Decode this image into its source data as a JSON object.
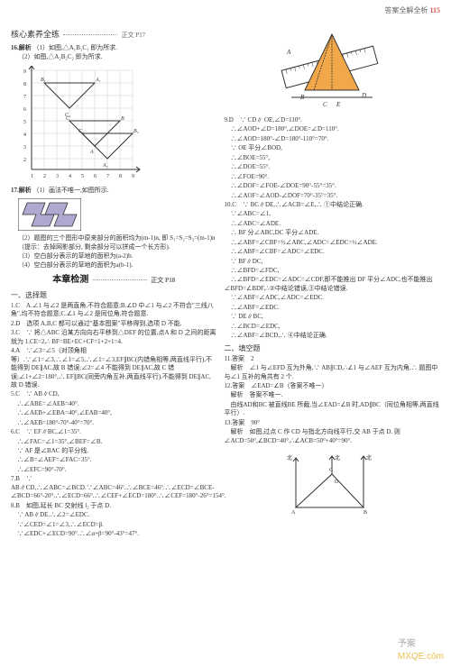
{
  "header": {
    "text": "答案全解全析",
    "page": "115"
  },
  "left": {
    "section_title": "核心素养全练",
    "ref": "正文 P17",
    "q16_label": "16.解析",
    "q16_1": "（1）如图,△A₁B₁C₁ 即为所求.",
    "q16_2": "（2）如图,△A₂B₂C₂ 即为所求.",
    "grid": {
      "xrange": [
        0,
        9
      ],
      "yrange": [
        1,
        9
      ],
      "bg": "#ffffff",
      "grid_color": "#cccccc",
      "axis_color": "#333333",
      "tri1_color": "#333333",
      "tri2_color": "#333333",
      "label_color": "#333333",
      "font_size": 7
    },
    "q17_label": "17.解析",
    "q17_1": "（1）画法不唯一,如图所示.",
    "q17_fig": {
      "bg": "#b0a8d0",
      "stroke": "#333333"
    },
    "q17_2": "（2）题图的三个图形中原来部分的面积均为(m-1)n, 即 S₁=S₂=S₃=(m-1)n（提示：去掉网影部分, 剩余部分可以拼成一个长方形).",
    "q17_3": "（3）空白部分表示的草地的面积为(a-2)b.",
    "q17_4": "（4）空白部分表示的草地的面积为a(b-1).",
    "chapter_title": "本章检测",
    "chapter_ref": "正文 P18",
    "sec1_title": "一、选择题",
    "lines1": [
      "1.C　A.∠1 与∠2 是两直角,不符合题意;B.∠D 中∠1 与∠2 不符合\"三线八角\",均不符合题意;C.∠1 与∠2 是同位角,符合题意.",
      "2.D　选项 A,B,C 都可以通过\"基本图案\"平移得到,选项 D 不能.",
      "3.C　∵ 将△ABC 沿某方向向右平移到△DEF 的位置,点A 和 D 之间的距离就为 1.CE=2,∴ BF=BE+EC+CF=1+2+1=4.",
      "4.A　∵∠3=∠5（对顶角相等）.∵∠1=∠3,∴∠1=∠5,∴∠1=∠3,EF∥BC(内错角相等,两直线平行),不能得到 DE∥AC,故 B 错误;∠2=∠4 不能得到 DE∥AC,故 C 错误;∠1+∠2=180°,∴ EF∥BC(同旁内角互补,两直线平行),不能得到 DE∥AC,故 D 错误.",
      "5.C　∵ AB∥CD,",
      "　∴∠ABE=∠AEB=40°.",
      "　∴∠AEB+∠EBA=40°,∠EAB=40°,",
      "　∴∠AEB=180°-70°-40°=70°.",
      "6.C　∵ EF∥BC,∠1=35°.",
      "　∴∠FAC=∠1=35°,∠BEF=∠B.",
      "　∵ AF 是∠BAC 的平分线,",
      "　∴∠B=∠AEF=∠FAC=35°.",
      "　∴∠EFC=90°-70°.",
      "7.B　∵ AB∥CD,∴∠ABC=∠BCD.∵∠ABC=46°.∴∠BCE=46°.∴∠ECD=∠BCE-∠BCD=66°-20°.∴∠ECD=66°.∴∠CEF+∠ECD=180°.∴∠CEF=180°-26°=154°.",
      "8.B　如图,延长 BC 交射线 l₂ 于点 D.",
      "　∵ AB∥DE.∴∠2=∠EDC.",
      "　∵∠CED=∠1=∠3,∴∠ECD=β.",
      "　∵∠EDC+∠ECD=90°.∴∠α+β=90°-43°=47°."
    ],
    "fig8": {
      "stroke": "#333333",
      "font_size": 6
    }
  },
  "right": {
    "ruler": {
      "fill": "#f2a84a",
      "stroke": "#333333"
    },
    "lines_a": [
      "9.D　∵ CD∥ OE,∠D=110°.",
      "　∴∠AOD+∠D=180°,∠DOE=∠D=110°.",
      "　∴∠AOD=180°-∠D=180°-110°=70°.",
      "　∵ OE 平分∠BOD,",
      "　∴∠BOE=55°,",
      "　∴∠DOE=55°.",
      "　∴∠FOE=90°.",
      "　∴∠DOF=∠FOE-∠DOE=90°-55°=35°.",
      "　∴∠AOF=∠AOD-∠DOF=70°-35°=35°.",
      "10.C　∵ BC∥DE,∴∠ACB=∠E,∴ ①中结论正确.",
      "　∵∠ABC=∠1,",
      "　∴∠ABC=∠ADE.",
      "　∴ BF 分∠ABC,DC 平分∠ADE.",
      "　∴∠ABF=∠CBF=½∠ABC,∠ADC=∠EDC=½∠ADE.",
      "　∴∠ABF=∠CBF=∠ADC=∠EDC.",
      "　∵ BF∥DC,",
      "　∴∠BFD=∠FDC,",
      "　∴∠BFD=∠EDC=∠ADC=∠CDF,即不能推出 DF 平分∠ADC,也不能推出∠BFD=∠BDF,∴②中结论错误,③中结论错误.",
      "　∵∠ABF=∠ADC,∠ADC=∠EDC.",
      "　∴∠ABF=∠EDC.",
      "　∵ DE∥BC,",
      "　∴∠BCD=∠EDC,",
      "　∴∠ABF=∠BCD,∴ ④中结论正确."
    ],
    "sec2_title": "二、填空题",
    "lines_b": [
      "11.答案　2",
      "　解析　∠1 与∠EFD 互为外角,∵ AB∥CD,∴∠1 与∠AEF 互为内角,∴ 题图中与∠1 互补的角共有 2 个.",
      "12.答案　∠EAD=∠B（答案不唯一）",
      "　解析　答案不唯一.",
      "　由线AD和BC 被直线BE 所截,当∠EAD=∠B 时,AD∥BC（同位角相等,两直线平行）.",
      "13.答案　90°",
      "　解析　如图,过点 C 作 CD 与指北方向线平行,交 AB 于点 D. 则∠ACD=50°,∠BCD=40°,∴∠ACB=50°+40°=90°."
    ],
    "fig13": {
      "stroke": "#333333",
      "font_size": 6
    }
  },
  "watermark": {
    "t1": "予案",
    "t2": "MXQE.cōm"
  }
}
